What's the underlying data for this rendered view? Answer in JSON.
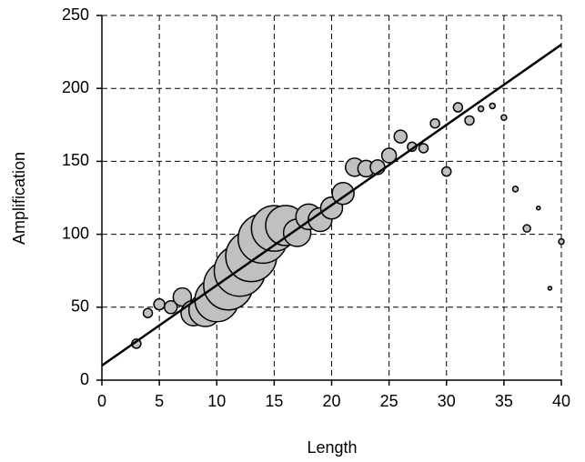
{
  "chart_data": {
    "type": "bubble",
    "x_label": "Length",
    "y_label": "Amplification",
    "x": [
      3,
      4,
      5,
      6,
      7,
      8,
      9,
      10,
      11,
      12,
      13,
      14,
      15,
      16,
      17,
      18,
      19,
      20,
      21,
      22,
      23,
      24,
      25,
      26,
      27,
      28,
      29,
      30,
      31,
      32,
      33,
      34,
      35,
      36,
      37,
      38,
      39,
      40
    ],
    "series": [
      {
        "color": "#c0c0c0",
        "values": [
          25,
          46,
          52,
          50,
          57,
          46,
          48,
          55,
          65,
          75,
          85,
          97,
          104,
          106,
          101,
          112,
          110,
          118,
          128,
          146,
          145,
          146,
          154,
          167,
          160,
          159,
          176,
          143,
          187,
          178,
          186,
          188,
          180,
          131,
          104,
          118,
          63,
          95
        ],
        "sizes": [
          5,
          5,
          6,
          7,
          10,
          14,
          18,
          24,
          27,
          28,
          28,
          27,
          25,
          22,
          15,
          14,
          13,
          12,
          12,
          10,
          9,
          8,
          8,
          7,
          5,
          5,
          5,
          5,
          5,
          5,
          3,
          3,
          3,
          3,
          4,
          2,
          2,
          3
        ]
      }
    ],
    "trendline": {
      "x": [
        0,
        40
      ],
      "y": [
        10,
        230
      ]
    },
    "xlim": [
      0,
      40
    ],
    "ylim": [
      0,
      250
    ],
    "xticks": [
      0,
      5,
      10,
      15,
      20,
      25,
      30,
      35,
      40
    ],
    "yticks": [
      0,
      50,
      100,
      150,
      200,
      250
    ],
    "grid": true
  }
}
